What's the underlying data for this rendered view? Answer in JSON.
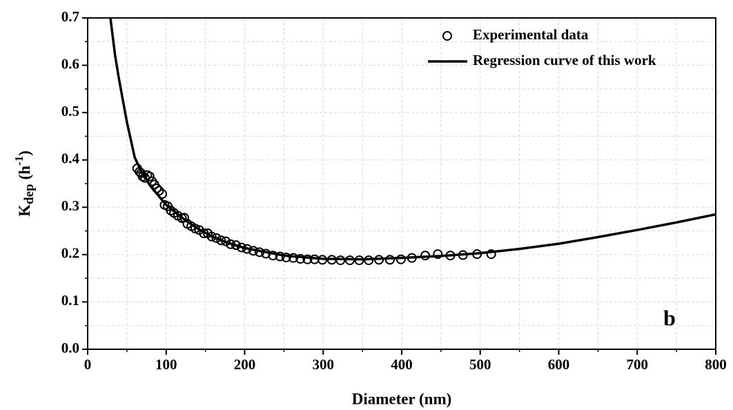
{
  "chart_data": {
    "type": "line",
    "xlabel": "Diameter (nm)",
    "ylabel": {
      "main": "K",
      "subscript": "dep",
      "unit": "(h",
      "superscript": "-1",
      "close": ")"
    },
    "annotation": "b",
    "xlim": [
      0,
      800
    ],
    "ylim": [
      0,
      0.7
    ],
    "xticks": [
      0,
      100,
      200,
      300,
      400,
      500,
      600,
      700,
      800
    ],
    "yticks": [
      {
        "value": 0,
        "label": "0.0"
      },
      0.1,
      0.2,
      0.3,
      0.4,
      0.5,
      0.6,
      0.7
    ],
    "xminorticks": [
      50,
      150,
      250,
      350,
      450,
      550,
      650,
      750
    ],
    "yminorticks": [
      0.05,
      0.15,
      0.25,
      0.35,
      0.45,
      0.55,
      0.65
    ],
    "grid": true,
    "legend": "upper right",
    "series": [
      {
        "name": "Experimental data",
        "type": "scatter",
        "color": "#000000",
        "x": [
          63,
          66,
          68,
          70,
          73,
          76,
          79,
          82,
          85,
          88,
          91,
          95,
          98,
          102,
          106,
          110,
          115,
          120,
          123,
          127,
          132,
          137,
          142,
          148,
          153,
          158,
          164,
          170,
          176,
          182,
          189,
          196,
          203,
          211,
          219,
          227,
          236,
          245,
          253,
          262,
          271,
          280,
          289,
          299,
          311,
          322,
          334,
          346,
          358,
          371,
          385,
          399,
          413,
          430,
          446,
          462,
          478,
          496,
          514
        ],
        "values": [
          0.382,
          0.375,
          0.372,
          0.365,
          0.362,
          0.368,
          0.365,
          0.355,
          0.348,
          0.34,
          0.335,
          0.328,
          0.305,
          0.302,
          0.293,
          0.288,
          0.282,
          0.277,
          0.278,
          0.265,
          0.26,
          0.255,
          0.252,
          0.245,
          0.245,
          0.238,
          0.235,
          0.23,
          0.228,
          0.222,
          0.22,
          0.215,
          0.212,
          0.208,
          0.205,
          0.202,
          0.198,
          0.196,
          0.194,
          0.193,
          0.191,
          0.19,
          0.19,
          0.189,
          0.189,
          0.188,
          0.188,
          0.188,
          0.188,
          0.189,
          0.189,
          0.19,
          0.193,
          0.198,
          0.201,
          0.198,
          0.199,
          0.201,
          0.201
        ]
      },
      {
        "name": "Regression curve of this work",
        "type": "line",
        "color": "#000000",
        "x": [
          29,
          35,
          40,
          50,
          60,
          70,
          80,
          90,
          100,
          120,
          140,
          160,
          180,
          200,
          250,
          300,
          350,
          400,
          450,
          500,
          550,
          600,
          650,
          700,
          750,
          800
        ],
        "values": [
          0.7,
          0.62,
          0.57,
          0.48,
          0.405,
          0.37,
          0.345,
          0.325,
          0.305,
          0.278,
          0.255,
          0.237,
          0.224,
          0.214,
          0.198,
          0.191,
          0.19,
          0.193,
          0.197,
          0.203,
          0.212,
          0.223,
          0.237,
          0.252,
          0.268,
          0.285
        ]
      }
    ]
  }
}
